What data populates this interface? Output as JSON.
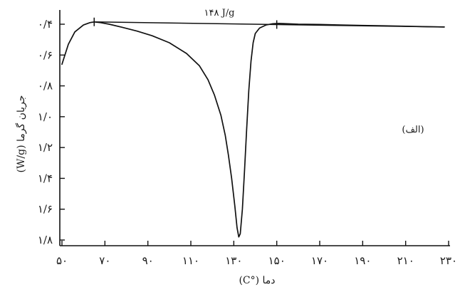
{
  "chart_data": {
    "type": "line",
    "xlabel": "دما (°C)",
    "ylabel": "جریان گرما (W/g)",
    "xlim": [
      50,
      230
    ],
    "ylim": [
      0.4,
      1.8
    ],
    "y_inverted": true,
    "grid": false,
    "x_ticks": [
      50,
      70,
      90,
      110,
      130,
      150,
      170,
      190,
      210,
      230
    ],
    "x_tick_labels": [
      "۵۰",
      "۷۰",
      "۹۰",
      "۱۱۰",
      "۱۳۰",
      "۱۵۰",
      "۱۷۰",
      "۱۹۰",
      "۲۱۰",
      "۲۳۰"
    ],
    "y_ticks": [
      0.4,
      0.6,
      0.8,
      1.0,
      1.2,
      1.4,
      1.6,
      1.8
    ],
    "y_tick_labels": [
      "۰/۴",
      "۰/۶",
      "۰/۸",
      "۱/۰",
      "۱/۲",
      "۱/۴",
      "۱/۶",
      "۱/۸"
    ],
    "series": [
      {
        "x": [
          50,
          53,
          56,
          60,
          63,
          65,
          68,
          72,
          78,
          85,
          92,
          100,
          108,
          114,
          118,
          121,
          124,
          126,
          127.5,
          129,
          130.5,
          131.5,
          132.3,
          133,
          134,
          135,
          136,
          137,
          138,
          139,
          140,
          142,
          145,
          148,
          151,
          155,
          160,
          170,
          180,
          190,
          200,
          210,
          220,
          228
        ],
        "y": [
          0.66,
          0.53,
          0.45,
          0.405,
          0.39,
          0.385,
          0.39,
          0.4,
          0.42,
          0.445,
          0.475,
          0.52,
          0.59,
          0.67,
          0.76,
          0.86,
          0.99,
          1.12,
          1.25,
          1.4,
          1.58,
          1.72,
          1.78,
          1.76,
          1.6,
          1.35,
          1.08,
          0.83,
          0.64,
          0.52,
          0.46,
          0.425,
          0.405,
          0.397,
          0.395,
          0.397,
          0.4,
          0.402,
          0.405,
          0.408,
          0.41,
          0.413,
          0.416,
          0.418
        ]
      }
    ],
    "baseline": {
      "x": [
        65,
        228
      ],
      "y": [
        0.385,
        0.418
      ]
    },
    "baseline_markers_x": [
      65,
      150
    ],
    "annotations": {
      "enthalpy": "۱۴۸ J/g",
      "panel_label": "(الف)"
    }
  }
}
